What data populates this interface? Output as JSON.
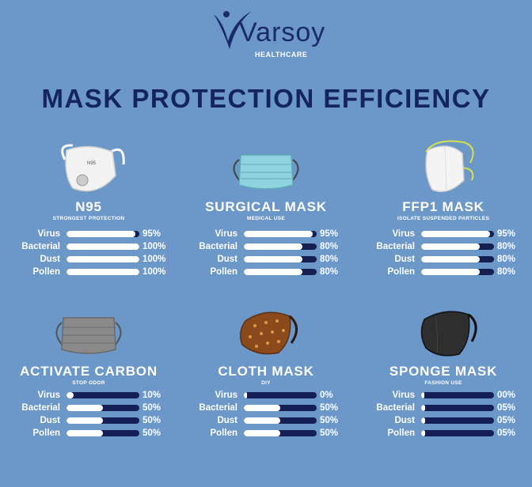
{
  "logo": {
    "brand": "Varsoy",
    "sub": "HEALTHCARE"
  },
  "title": "MASK PROTECTION EFFICIENCY",
  "colors": {
    "background": "#6b97c9",
    "title": "#14245c",
    "bar_track": "#131f55",
    "bar_fill": "#ffffff"
  },
  "masks": [
    {
      "name": "N95",
      "subtitle": "STRONGEST PROTECTION",
      "icon": "n95-mask-icon",
      "rows": [
        {
          "label": "Virus",
          "value": "95%",
          "fraction": 0.95
        },
        {
          "label": "Bacterial",
          "value": "100%",
          "fraction": 1.0
        },
        {
          "label": "Dust",
          "value": "100%",
          "fraction": 1.0
        },
        {
          "label": "Pollen",
          "value": "100%",
          "fraction": 1.0
        }
      ]
    },
    {
      "name": "SURGICAL MASK",
      "subtitle": "MEDICAL USE",
      "icon": "surgical-mask-icon",
      "rows": [
        {
          "label": "Virus",
          "value": "95%",
          "fraction": 0.95
        },
        {
          "label": "Bacterial",
          "value": "80%",
          "fraction": 0.8
        },
        {
          "label": "Dust",
          "value": "80%",
          "fraction": 0.8
        },
        {
          "label": "Pollen",
          "value": "80%",
          "fraction": 0.8
        }
      ]
    },
    {
      "name": "FFP1 MASK",
      "subtitle": "ISOLATE SUSPENDED PARTICLES",
      "icon": "ffp1-mask-icon",
      "rows": [
        {
          "label": "Virus",
          "value": "95%",
          "fraction": 0.95
        },
        {
          "label": "Bacterial",
          "value": "80%",
          "fraction": 0.8
        },
        {
          "label": "Dust",
          "value": "80%",
          "fraction": 0.8
        },
        {
          "label": "Pollen",
          "value": "80%",
          "fraction": 0.8
        }
      ]
    },
    {
      "name": "ACTIVATE CARBON",
      "subtitle": "STOP ODOR",
      "icon": "carbon-mask-icon",
      "rows": [
        {
          "label": "Virus",
          "value": "10%",
          "fraction": 0.1
        },
        {
          "label": "Bacterial",
          "value": "50%",
          "fraction": 0.5
        },
        {
          "label": "Dust",
          "value": "50%",
          "fraction": 0.5
        },
        {
          "label": "Pollen",
          "value": "50%",
          "fraction": 0.5
        }
      ]
    },
    {
      "name": "CLOTH MASK",
      "subtitle": "DIY",
      "icon": "cloth-mask-icon",
      "rows": [
        {
          "label": "Virus",
          "value": "0%",
          "fraction": 0.0
        },
        {
          "label": "Bacterial",
          "value": "50%",
          "fraction": 0.5
        },
        {
          "label": "Dust",
          "value": "50%",
          "fraction": 0.5
        },
        {
          "label": "Pollen",
          "value": "50%",
          "fraction": 0.5
        }
      ]
    },
    {
      "name": "SPONGE MASK",
      "subtitle": "FASHION USE",
      "icon": "sponge-mask-icon",
      "rows": [
        {
          "label": "Virus",
          "value": "00%",
          "fraction": 0.0
        },
        {
          "label": "Bacterial",
          "value": "05%",
          "fraction": 0.05
        },
        {
          "label": "Dust",
          "value": "05%",
          "fraction": 0.05
        },
        {
          "label": "Pollen",
          "value": "05%",
          "fraction": 0.05
        }
      ]
    }
  ]
}
